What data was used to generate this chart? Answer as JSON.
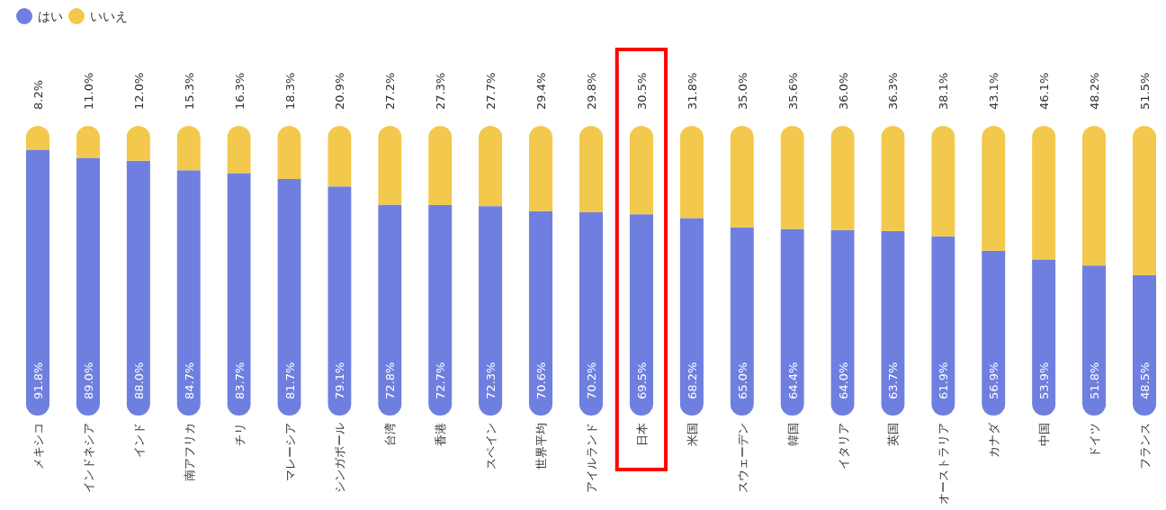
{
  "chart_data": {
    "type": "bar",
    "stacked": true,
    "legend": "top left",
    "data_labels": true,
    "categories": [
      "メキシコ",
      "インドネシア",
      "インド",
      "南アフリカ",
      "チリ",
      "マレーシア",
      "シンガポール",
      "台湾",
      "香港",
      "スペイン",
      "世界平均",
      "アイルランド",
      "日本",
      "米国",
      "スウェーデン",
      "韓国",
      "イタリア",
      "英国",
      "オーストラリア",
      "カナダ",
      "中国",
      "ドイツ",
      "フランス"
    ],
    "series": [
      {
        "name": "はい",
        "color": "#6f7fe0",
        "values": [
          91.8,
          89.0,
          88.0,
          84.7,
          83.7,
          81.7,
          79.1,
          72.8,
          72.7,
          72.3,
          70.6,
          70.2,
          69.5,
          68.2,
          65.0,
          64.4,
          64.0,
          63.7,
          61.9,
          56.9,
          53.9,
          51.8,
          48.5
        ],
        "value_labels": [
          "91.8%",
          "89.0%",
          "88.0%",
          "84.7%",
          "83.7%",
          "81.7%",
          "79.1%",
          "72.8%",
          "72.7%",
          "72.3%",
          "70.6%",
          "70.2%",
          "69.5%",
          "68.2%",
          "65.0%",
          "64.4%",
          "64.0%",
          "63.7%",
          "61.9%",
          "56.9%",
          "53.9%",
          "51.8%",
          "48.5%"
        ]
      },
      {
        "name": "いいえ",
        "color": "#f2c94c",
        "values": [
          8.2,
          11.0,
          12.0,
          15.3,
          16.3,
          18.3,
          20.9,
          27.2,
          27.3,
          27.7,
          29.4,
          29.8,
          30.5,
          31.8,
          35.0,
          35.6,
          36.0,
          36.3,
          38.1,
          43.1,
          46.1,
          48.2,
          51.5
        ],
        "value_labels": [
          "8.2%",
          "11.0%",
          "12.0%",
          "15.3%",
          "16.3%",
          "18.3%",
          "20.9%",
          "27.2%",
          "27.3%",
          "27.7%",
          "29.4%",
          "29.8%",
          "30.5%",
          "31.8%",
          "35.0%",
          "35.6%",
          "36.0%",
          "36.3%",
          "38.1%",
          "43.1%",
          "46.1%",
          "48.2%",
          "51.5%"
        ]
      }
    ]
  }
}
